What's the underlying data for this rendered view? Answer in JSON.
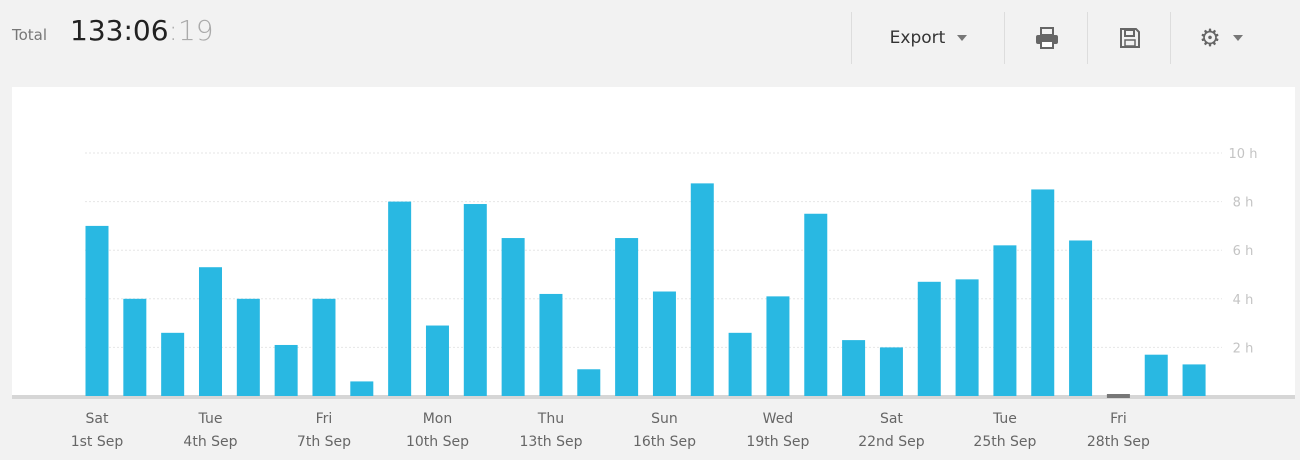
{
  "header": {
    "total_label": "Total",
    "total_hm": "133:06",
    "total_sec": ":19"
  },
  "toolbar": {
    "export_label": "Export",
    "icons": [
      "print-icon",
      "save-icon",
      "gear-icon"
    ]
  },
  "chart_data": {
    "type": "bar",
    "title": "",
    "xlabel": "",
    "ylabel": "",
    "ylim": [
      0,
      10
    ],
    "y_ticks": [
      "2 h",
      "4 h",
      "6 h",
      "8 h",
      "10 h"
    ],
    "y_tick_values": [
      2,
      4,
      6,
      8,
      10
    ],
    "grid": true,
    "bar_color": "#29b8e2",
    "zero_color": "#777777",
    "x_labels": [
      {
        "index": 0,
        "day": "Sat",
        "date": "1st Sep"
      },
      {
        "index": 3,
        "day": "Tue",
        "date": "4th Sep"
      },
      {
        "index": 6,
        "day": "Fri",
        "date": "7th Sep"
      },
      {
        "index": 9,
        "day": "Mon",
        "date": "10th Sep"
      },
      {
        "index": 12,
        "day": "Thu",
        "date": "13th Sep"
      },
      {
        "index": 15,
        "day": "Sun",
        "date": "16th Sep"
      },
      {
        "index": 18,
        "day": "Wed",
        "date": "19th Sep"
      },
      {
        "index": 21,
        "day": "Sat",
        "date": "22nd Sep"
      },
      {
        "index": 24,
        "day": "Tue",
        "date": "25th Sep"
      },
      {
        "index": 27,
        "day": "Fri",
        "date": "28th Sep"
      }
    ],
    "values": [
      7.0,
      4.0,
      2.6,
      5.3,
      4.0,
      2.1,
      4.0,
      0.6,
      8.0,
      2.9,
      7.9,
      6.5,
      4.2,
      1.1,
      6.5,
      4.3,
      8.75,
      2.6,
      4.1,
      7.5,
      2.3,
      2.0,
      4.7,
      4.8,
      6.2,
      8.5,
      6.4,
      0,
      1.7,
      1.3
    ]
  }
}
